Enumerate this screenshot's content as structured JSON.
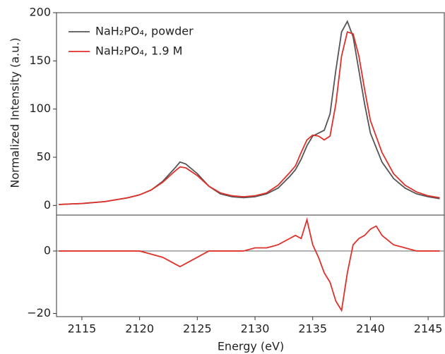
{
  "chart_data": [
    {
      "type": "line",
      "ylabel": "Normalized Intensity (a.u.)",
      "xlim": [
        2112.8,
        2146.4
      ],
      "ylim": [
        -10,
        200
      ],
      "yticks": [
        0,
        50,
        100,
        150,
        200
      ],
      "legend": "upper left",
      "x": [
        2113,
        2114,
        2115,
        2116,
        2117,
        2118,
        2119,
        2120,
        2121,
        2122,
        2123,
        2123.5,
        2124,
        2125,
        2126,
        2127,
        2128,
        2129,
        2130,
        2131,
        2132,
        2133,
        2133.5,
        2134,
        2134.5,
        2135,
        2135.5,
        2136,
        2136.5,
        2137,
        2137.5,
        2138,
        2138.5,
        2139,
        2139.5,
        2140,
        2141,
        2142,
        2143,
        2144,
        2145,
        2146
      ],
      "series": [
        {
          "name": "NaH₂PO₄, powder",
          "color": "#555555",
          "values": [
            1,
            1.5,
            2,
            3,
            4,
            6,
            8,
            11,
            16,
            25,
            38,
            45,
            43,
            33,
            20,
            12,
            9,
            8,
            9,
            12,
            18,
            30,
            37,
            48,
            62,
            72,
            75,
            78,
            95,
            140,
            180,
            191,
            175,
            140,
            105,
            75,
            45,
            28,
            18,
            12,
            9,
            7
          ]
        },
        {
          "name": "NaH₂PO₄, 1.9 M",
          "color": "#e0302a",
          "values": [
            1,
            1.5,
            2,
            3,
            4,
            6,
            8,
            11,
            16,
            24,
            35,
            40,
            39,
            31,
            20,
            13,
            10,
            9,
            10,
            13,
            21,
            34,
            41,
            55,
            68,
            73,
            72,
            68,
            72,
            105,
            155,
            180,
            178,
            155,
            120,
            88,
            55,
            33,
            21,
            14,
            10,
            8
          ]
        }
      ]
    },
    {
      "type": "line",
      "xlabel": "Energy (eV)",
      "xlim": [
        2112.8,
        2146.4
      ],
      "xticks": [
        2115,
        2120,
        2125,
        2130,
        2135,
        2140,
        2145
      ],
      "ylim": [
        -21,
        11.5
      ],
      "yticks": [
        {
          "value": -20,
          "label": "−20"
        },
        0
      ],
      "zero_line": true,
      "color": "#e0302a",
      "x": [
        2113,
        2114,
        2115,
        2116,
        2117,
        2118,
        2119,
        2120,
        2121,
        2122,
        2123,
        2123.5,
        2124,
        2125,
        2126,
        2127,
        2128,
        2129,
        2130,
        2131,
        2132,
        2133,
        2133.5,
        2134,
        2134.5,
        2135,
        2135.5,
        2136,
        2136.5,
        2137,
        2137.5,
        2138,
        2138.5,
        2139,
        2139.5,
        2140,
        2140.5,
        2141,
        2142,
        2143,
        2144,
        2145,
        2146
      ],
      "values": [
        0,
        0,
        0,
        0,
        0,
        0,
        0,
        0,
        -1,
        -2,
        -4,
        -5,
        -4,
        -2,
        0,
        0,
        0,
        0,
        1,
        1,
        2,
        4,
        5,
        4,
        10,
        2,
        -2,
        -7,
        -10,
        -16,
        -19,
        -7,
        2,
        4,
        5,
        7,
        8,
        5,
        2,
        1,
        0,
        0,
        0
      ]
    }
  ]
}
